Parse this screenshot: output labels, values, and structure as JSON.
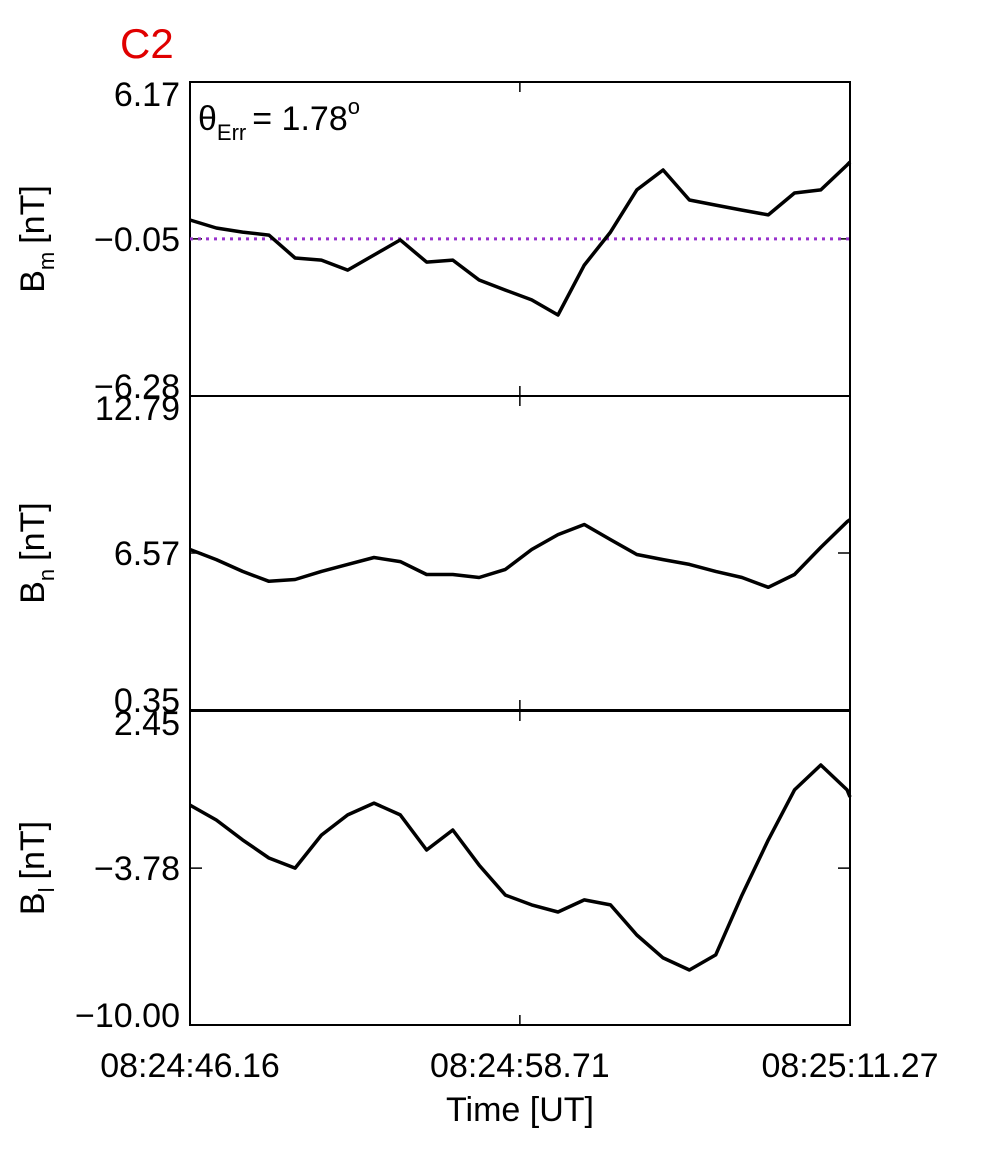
{
  "chart_data": [
    {
      "type": "line",
      "title": "C2",
      "annotation": {
        "symbol": "θ",
        "subscript": "Err",
        "text": "=  1.78",
        "superscript": "o"
      },
      "ylabel": {
        "symbol": "B",
        "subscript": "m",
        "unit": "[nT]"
      },
      "color": "#000000",
      "x": [
        "08:24:46.16",
        "08:24:47.16",
        "08:24:48.16",
        "08:24:49.16",
        "08:24:50.16",
        "08:24:51.16",
        "08:24:52.16",
        "08:24:53.16",
        "08:24:54.16",
        "08:24:55.16",
        "08:24:56.16",
        "08:24:57.16",
        "08:24:58.16",
        "08:24:59.16",
        "08:25:00.16",
        "08:25:01.16",
        "08:25:02.16",
        "08:25:03.16",
        "08:25:04.16",
        "08:25:05.16",
        "08:25:06.16",
        "08:25:07.16",
        "08:25:08.16",
        "08:25:09.16",
        "08:25:10.16",
        "08:25:11.16",
        "08:25:11.27"
      ],
      "values": [
        0.7,
        0.38,
        0.22,
        0.1,
        -0.81,
        -0.89,
        -1.29,
        -0.69,
        -0.09,
        -0.97,
        -0.89,
        -1.68,
        -2.08,
        -2.47,
        -3.07,
        -1.09,
        0.22,
        1.89,
        2.68,
        1.49,
        1.29,
        1.09,
        0.9,
        1.77,
        1.89,
        2.88,
        3.0
      ],
      "reference_line": {
        "value": -0.05,
        "color": "#9933cc"
      },
      "xlim": [
        "08:24:46.16",
        "08:25:11.27"
      ],
      "xticks": [
        "08:24:46.16",
        "08:24:58.71",
        "08:25:11.27"
      ],
      "ylim": [
        -6.28,
        6.17
      ],
      "yticks": [
        {
          "value": -6.28,
          "label": "−6.28"
        },
        {
          "value": -0.05,
          "label": "−0.05"
        },
        6.17
      ]
    },
    {
      "type": "line",
      "ylabel": {
        "symbol": "B",
        "subscript": "n",
        "unit": "[nT]"
      },
      "color": "#000000",
      "x": [
        "08:24:46.16",
        "08:24:47.16",
        "08:24:48.16",
        "08:24:49.16",
        "08:24:50.16",
        "08:24:51.16",
        "08:24:52.16",
        "08:24:53.16",
        "08:24:54.16",
        "08:24:55.16",
        "08:24:56.16",
        "08:24:57.16",
        "08:24:58.16",
        "08:24:59.16",
        "08:25:00.16",
        "08:25:01.16",
        "08:25:02.16",
        "08:25:03.16",
        "08:25:04.16",
        "08:25:05.16",
        "08:25:06.16",
        "08:25:07.16",
        "08:25:08.16",
        "08:25:09.16",
        "08:25:10.16",
        "08:25:11.16",
        "08:25:11.27"
      ],
      "values": [
        6.71,
        6.31,
        5.84,
        5.45,
        5.52,
        5.84,
        6.12,
        6.39,
        6.23,
        5.72,
        5.72,
        5.6,
        5.92,
        6.71,
        7.3,
        7.7,
        7.1,
        6.51,
        6.31,
        6.12,
        5.84,
        5.6,
        5.21,
        5.72,
        6.79,
        7.81,
        7.89
      ],
      "xlim": [
        "08:24:46.16",
        "08:25:11.27"
      ],
      "xticks": [
        "08:24:46.16",
        "08:24:58.71",
        "08:25:11.27"
      ],
      "ylim": [
        0.35,
        12.79
      ],
      "yticks": [
        0.35,
        6.57,
        12.79
      ]
    },
    {
      "type": "line",
      "ylabel": {
        "symbol": "B",
        "subscript": "l",
        "unit": "[nT]"
      },
      "xlabel": "Time [UT]",
      "color": "#000000",
      "x": [
        "08:24:46.16",
        "08:24:47.16",
        "08:24:48.16",
        "08:24:49.16",
        "08:24:50.16",
        "08:24:51.16",
        "08:24:52.16",
        "08:24:53.16",
        "08:24:54.16",
        "08:24:55.16",
        "08:24:56.16",
        "08:24:57.16",
        "08:24:58.16",
        "08:24:59.16",
        "08:25:00.16",
        "08:25:01.16",
        "08:25:02.16",
        "08:25:03.16",
        "08:25:04.16",
        "08:25:05.16",
        "08:25:06.16",
        "08:25:07.16",
        "08:25:08.16",
        "08:25:09.16",
        "08:25:10.16",
        "08:25:11.16",
        "08:25:11.27"
      ],
      "values": [
        -1.28,
        -1.87,
        -2.66,
        -3.38,
        -3.78,
        -2.47,
        -1.67,
        -1.2,
        -1.67,
        -3.06,
        -2.27,
        -3.66,
        -4.85,
        -5.24,
        -5.52,
        -5.04,
        -5.24,
        -6.43,
        -7.34,
        -7.82,
        -7.22,
        -4.85,
        -2.66,
        -0.68,
        0.31,
        -0.68,
        -0.96
      ],
      "xlim": [
        "08:24:46.16",
        "08:25:11.27"
      ],
      "xticks": [
        "08:24:46.16",
        "08:24:58.71",
        "08:25:11.27"
      ],
      "ylim": [
        -10.0,
        2.45
      ],
      "yticks": [
        {
          "value": -10.0,
          "label": "−10.00"
        },
        {
          "value": -3.78,
          "label": "−3.78"
        },
        2.45
      ]
    }
  ]
}
